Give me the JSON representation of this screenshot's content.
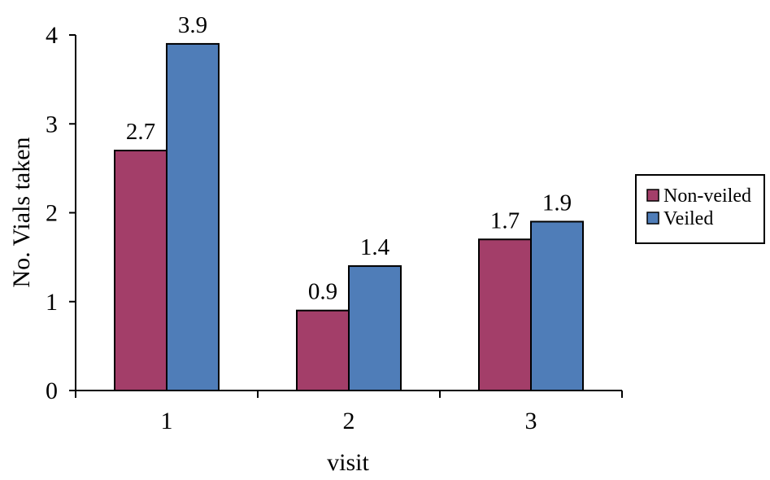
{
  "chart_data": {
    "type": "bar",
    "categories": [
      "1",
      "2",
      "3"
    ],
    "series": [
      {
        "name": "Non-veiled",
        "values": [
          2.7,
          0.9,
          1.7
        ],
        "labels": [
          "2.7",
          "0.9",
          "1.7"
        ],
        "color": "#a33e69"
      },
      {
        "name": "Veiled",
        "values": [
          3.9,
          1.4,
          1.9
        ],
        "labels": [
          "3.9",
          "1.4",
          "1.9"
        ],
        "color": "#4f7db8"
      }
    ],
    "xlabel": "visit",
    "ylabel": "No. Vials taken",
    "ylim": [
      0,
      4
    ],
    "yticks": [
      "0",
      "1",
      "2",
      "3",
      "4"
    ],
    "grid": false,
    "legend_position": "right"
  }
}
